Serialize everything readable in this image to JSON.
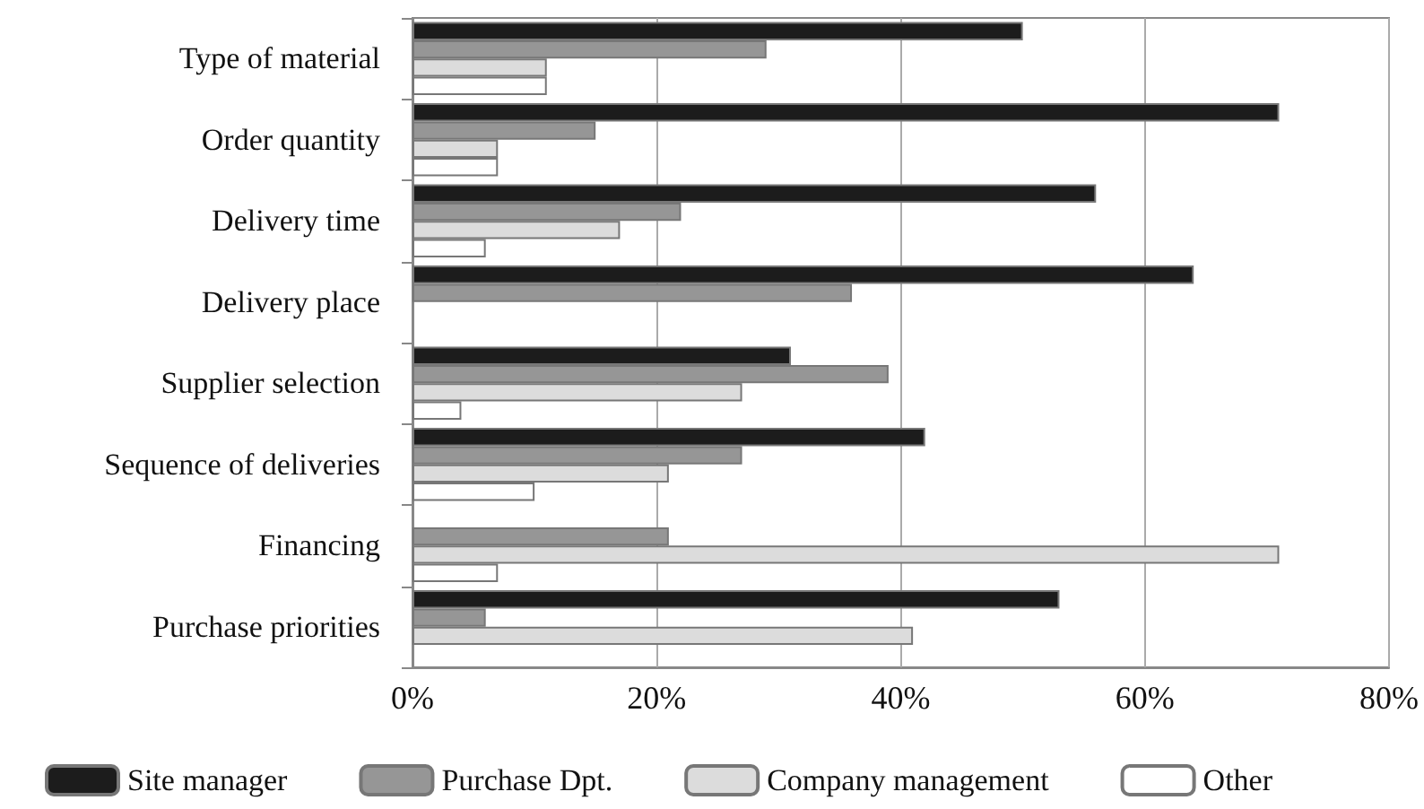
{
  "chart_data": {
    "type": "bar",
    "orientation": "horizontal",
    "categories": [
      "Type of material",
      "Order quantity",
      "Delivery time",
      "Delivery place",
      "Supplier selection",
      "Sequence of deliveries",
      "Financing",
      "Purchase priorities"
    ],
    "series": [
      {
        "name": "Site manager",
        "color": "#1c1c1c",
        "values": [
          50,
          71,
          56,
          64,
          31,
          42,
          null,
          53
        ]
      },
      {
        "name": "Purchase Dpt.",
        "color": "#969696",
        "values": [
          29,
          15,
          22,
          36,
          39,
          27,
          21,
          6
        ]
      },
      {
        "name": "Company management",
        "color": "#dcdcdc",
        "values": [
          11,
          7,
          17,
          null,
          27,
          21,
          71,
          41
        ]
      },
      {
        "name": "Other",
        "color": "#ffffff",
        "values": [
          11,
          7,
          6,
          null,
          4,
          10,
          7,
          null
        ]
      }
    ],
    "xlim": [
      0,
      80
    ],
    "xticks": [
      {
        "value": 0,
        "label": "0%"
      },
      {
        "value": 20,
        "label": "20%"
      },
      {
        "value": 40,
        "label": "40%"
      },
      {
        "value": 60,
        "label": "60%"
      },
      {
        "value": 80,
        "label": "80%"
      }
    ],
    "grid": "x",
    "legend": "bottom"
  }
}
